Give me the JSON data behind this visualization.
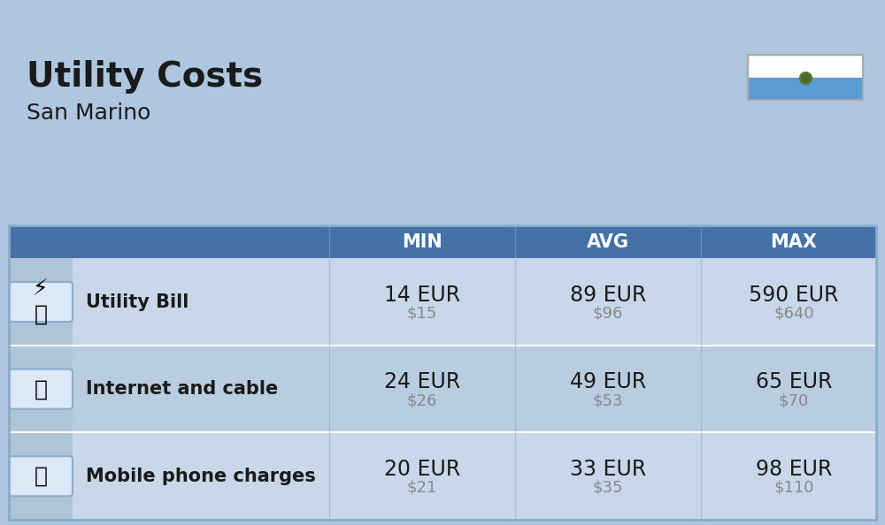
{
  "title": "Utility Costs",
  "subtitle": "San Marino",
  "background_color": "#aec6e0",
  "header_color": "#4472a8",
  "header_text_color": "#ffffff",
  "row_color_odd": "#c8d8ea",
  "row_color_even": "#b8cde0",
  "icon_col_color": "#b0c4d8",
  "col_headers": [
    "MIN",
    "AVG",
    "MAX"
  ],
  "rows": [
    {
      "label": "Utility Bill",
      "min_eur": "14 EUR",
      "min_usd": "$15",
      "avg_eur": "89 EUR",
      "avg_usd": "$96",
      "max_eur": "590 EUR",
      "max_usd": "$640"
    },
    {
      "label": "Internet and cable",
      "min_eur": "24 EUR",
      "min_usd": "$26",
      "avg_eur": "49 EUR",
      "avg_usd": "$53",
      "max_eur": "65 EUR",
      "max_usd": "$70"
    },
    {
      "label": "Mobile phone charges",
      "min_eur": "20 EUR",
      "min_usd": "$21",
      "avg_eur": "33 EUR",
      "avg_usd": "$35",
      "max_eur": "98 EUR",
      "max_usd": "$110"
    }
  ],
  "title_fontsize": 28,
  "subtitle_fontsize": 18,
  "header_fontsize": 15,
  "label_fontsize": 15,
  "value_fontsize": 17,
  "usd_fontsize": 13
}
